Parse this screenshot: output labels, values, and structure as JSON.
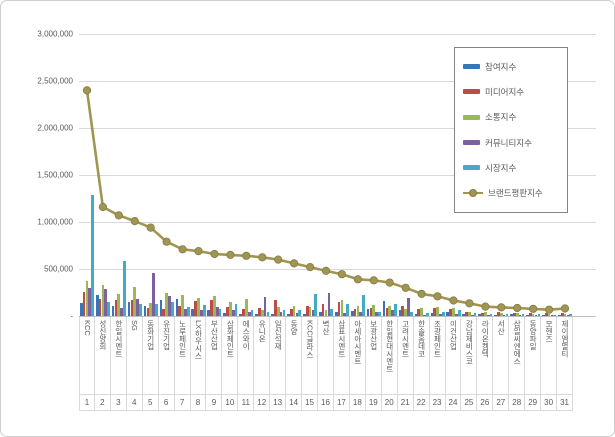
{
  "chart_data": {
    "type": "bar",
    "subtype": "grouped-bars-with-line-overlay",
    "title": "",
    "xlabel": "",
    "ylabel": "",
    "categories": [
      "KCC",
      "성신양회",
      "한일시멘트",
      "SG",
      "동화기업",
      "유진기업",
      "노루페인트",
      "LX하우시스",
      "부산산업",
      "삼화페인트",
      "에스와이",
      "유니온",
      "일신석재",
      "동양",
      "KCC글라스",
      "벽산",
      "삼표시멘트",
      "아세아시멘트",
      "보광산업",
      "한일현대시멘트",
      "고려시멘트",
      "한솔홈데코",
      "조광페인트",
      "이건산업",
      "강남제비스코",
      "라이온켐텍",
      "서산",
      "삼일씨엔에스",
      "동양파일",
      "모헨즈",
      "제이엠멀티"
    ],
    "category_ranks": [
      "1",
      "2",
      "3",
      "4",
      "5",
      "6",
      "7",
      "8",
      "9",
      "10",
      "11",
      "12",
      "13",
      "14",
      "15",
      "16",
      "17",
      "18",
      "19",
      "20",
      "21",
      "22",
      "23",
      "24",
      "25",
      "26",
      "27",
      "28",
      "29",
      "30",
      "31"
    ],
    "series": [
      {
        "name": "참여지수",
        "type": "bar",
        "color": "#3c73b4",
        "values": [
          135000,
          225000,
          105000,
          150000,
          105000,
          170000,
          180000,
          70000,
          60000,
          30000,
          25000,
          20000,
          25000,
          20000,
          20000,
          40000,
          40000,
          50000,
          70000,
          155000,
          60000,
          25000,
          35000,
          40000,
          25000,
          20000,
          15000,
          20000,
          15000,
          10000,
          15000
        ]
      },
      {
        "name": "미디어지수",
        "type": "bar",
        "color": "#be4b48",
        "values": [
          255000,
          180000,
          170000,
          170000,
          80000,
          70000,
          110000,
          155000,
          175000,
          100000,
          75000,
          85000,
          165000,
          75000,
          110000,
          130000,
          145000,
          70000,
          80000,
          80000,
          105000,
          70000,
          80000,
          75000,
          45000,
          35000,
          40000,
          35000,
          30000,
          30000,
          35000
        ]
      },
      {
        "name": "소통지수",
        "type": "bar",
        "color": "#98b954",
        "values": [
          370000,
          325000,
          230000,
          310000,
          140000,
          245000,
          225000,
          190000,
          210000,
          150000,
          180000,
          65000,
          95000,
          110000,
          95000,
          60000,
          170000,
          110000,
          120000,
          105000,
          75000,
          80000,
          95000,
          85000,
          40000,
          45000,
          30000,
          30000,
          25000,
          20000,
          25000
        ]
      },
      {
        "name": "커뮤니티지수",
        "type": "bar",
        "color": "#7c60a0",
        "values": [
          300000,
          290000,
          90000,
          185000,
          460000,
          210000,
          75000,
          65000,
          95000,
          60000,
          40000,
          200000,
          40000,
          30000,
          60000,
          245000,
          30000,
          40000,
          45000,
          60000,
          190000,
          12000,
          25000,
          20000,
          15000,
          10000,
          10000,
          10000,
          8000,
          8000,
          10000
        ]
      },
      {
        "name": "시장지수",
        "type": "bar",
        "color": "#45aac8",
        "values": [
          1290000,
          150000,
          590000,
          125000,
          125000,
          150000,
          95000,
          120000,
          75000,
          130000,
          65000,
          40000,
          60000,
          60000,
          230000,
          75000,
          130000,
          220000,
          40000,
          130000,
          40000,
          35000,
          45000,
          60000,
          30000,
          25000,
          20000,
          25000,
          20000,
          15000,
          20000
        ]
      },
      {
        "name": "브랜드평판지수",
        "type": "line",
        "color": "#a09552",
        "marker_edge": "#857c42",
        "values": [
          2400000,
          1160000,
          1070000,
          1010000,
          940000,
          790000,
          710000,
          690000,
          660000,
          650000,
          640000,
          625000,
          600000,
          560000,
          520000,
          480000,
          445000,
          390000,
          380000,
          355000,
          300000,
          235000,
          210000,
          165000,
          135000,
          100000,
          92000,
          85000,
          76000,
          67000,
          80000
        ]
      }
    ],
    "y_axis": {
      "min": 0,
      "max": 3000000,
      "tick_interval": 500000,
      "tick_labels": [
        "3,000,000",
        "2,500,000",
        "2,000,000",
        "1,500,000",
        "1,000,000",
        "500,000",
        "-"
      ]
    },
    "grid": true,
    "legend_position": "upper-right",
    "colors": {
      "gridline": "#d9d9d9",
      "axis_line": "#bfbfbf",
      "text": "#595959",
      "legend_border": "#848484",
      "background": "#ffffff"
    }
  }
}
